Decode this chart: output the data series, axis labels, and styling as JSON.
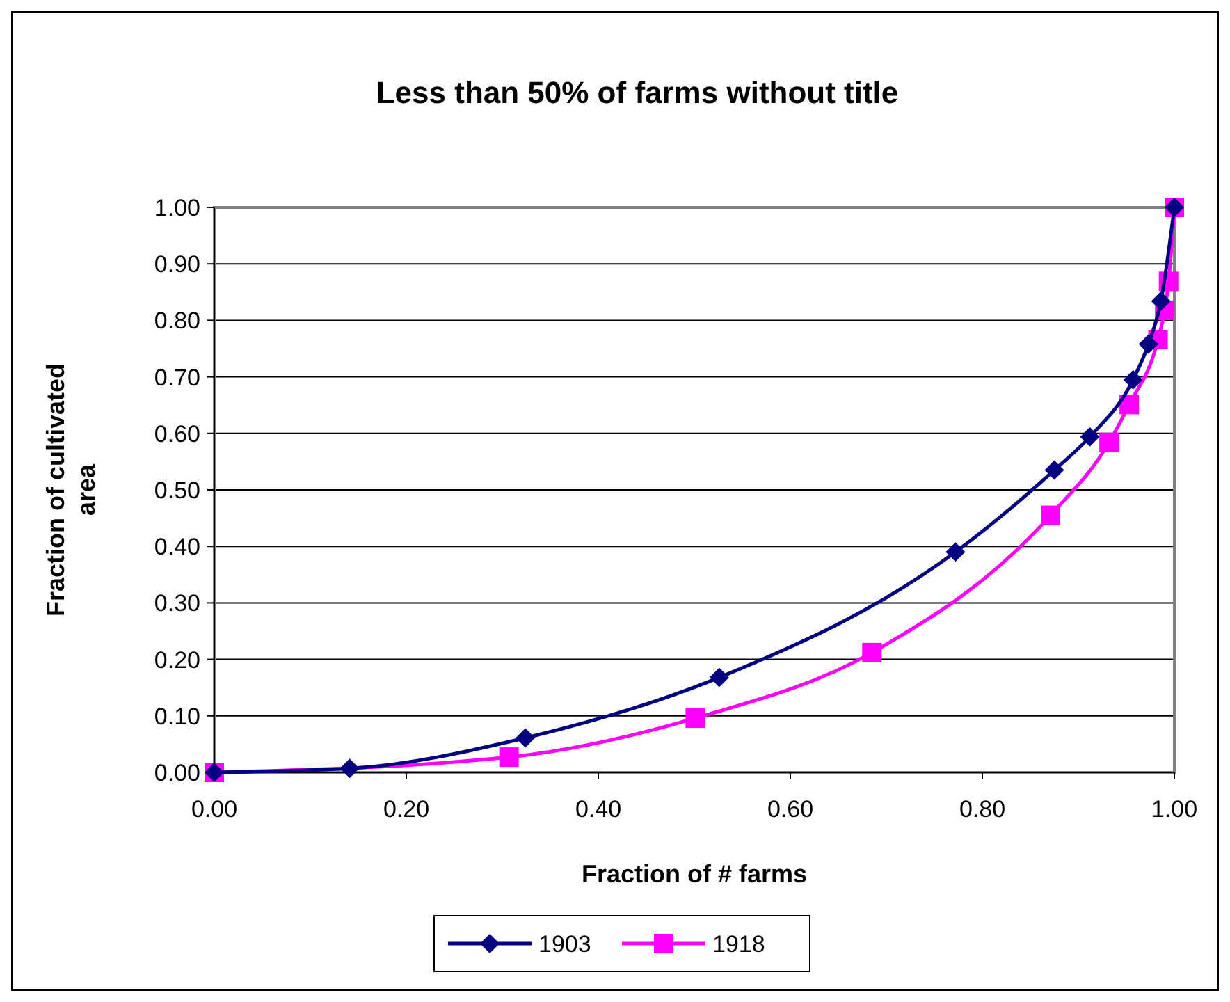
{
  "chart_data": {
    "type": "line",
    "title": "Less than 50% of farms without title",
    "xlabel": "Fraction of # farms",
    "ylabel": "Fraction of cultivated area",
    "xlim": [
      0,
      1
    ],
    "xticks": [
      {
        "value": 0,
        "label": "0.00"
      },
      {
        "value": 0.2,
        "label": "0.20"
      },
      {
        "value": 0.4,
        "label": "0.40"
      },
      {
        "value": 0.6,
        "label": "0.60"
      },
      {
        "value": 0.8,
        "label": "0.80"
      },
      {
        "value": 1,
        "label": "1.00"
      }
    ],
    "ylim": [
      0,
      1
    ],
    "yticks": [
      {
        "value": 0,
        "label": "0.00"
      },
      {
        "value": 0.1,
        "label": "0.10"
      },
      {
        "value": 0.2,
        "label": "0.20"
      },
      {
        "value": 0.3,
        "label": "0.30"
      },
      {
        "value": 0.4,
        "label": "0.40"
      },
      {
        "value": 0.5,
        "label": "0.50"
      },
      {
        "value": 0.6,
        "label": "0.60"
      },
      {
        "value": 0.7,
        "label": "0.70"
      },
      {
        "value": 0.8,
        "label": "0.80"
      },
      {
        "value": 0.9,
        "label": "0.90"
      },
      {
        "value": 1,
        "label": "1.00"
      }
    ],
    "grid": "y",
    "legend": "bottom",
    "series": [
      {
        "name": "1903",
        "color": "#000080",
        "marker": "diamond",
        "x": [
          0,
          0.141,
          0.324,
          0.526,
          0.772,
          0.875,
          0.912,
          0.957,
          0.973,
          0.986,
          1
        ],
        "values": [
          0,
          0.007,
          0.061,
          0.168,
          0.39,
          0.535,
          0.594,
          0.695,
          0.758,
          0.834,
          1
        ]
      },
      {
        "name": "1918",
        "color": "#ff00ff",
        "marker": "square",
        "x": [
          0,
          0.307,
          0.501,
          0.685,
          0.871,
          0.932,
          0.953,
          0.983,
          0.99,
          0.994,
          1
        ],
        "values": [
          0,
          0.027,
          0.096,
          0.212,
          0.455,
          0.584,
          0.651,
          0.766,
          0.818,
          0.869,
          1
        ]
      }
    ]
  }
}
